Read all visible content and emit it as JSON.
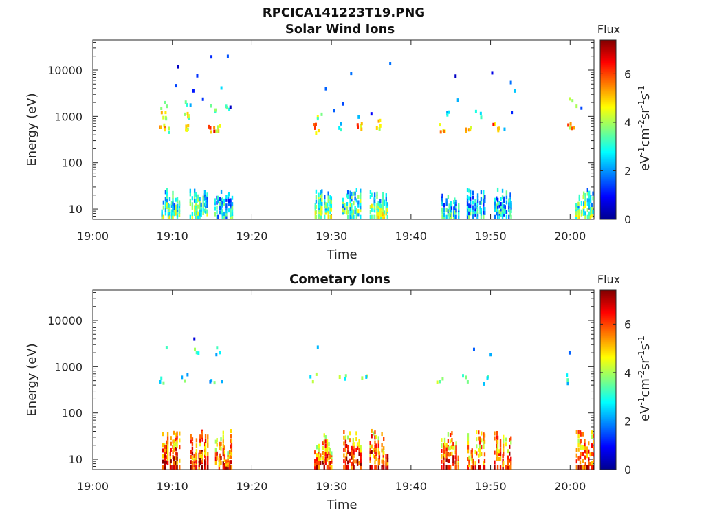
{
  "figure": {
    "title": "RPCICA141223T19.PNG"
  },
  "chart_data": [
    {
      "type": "heatmap",
      "title": "Solar Wind Ions",
      "xlabel": "Time",
      "ylabel": "Energy (eV)",
      "x_ticks": [
        "19:00",
        "19:10",
        "19:20",
        "19:30",
        "19:40",
        "19:50",
        "20:00"
      ],
      "y_ticks": [
        "10",
        "100",
        "1000",
        "10000"
      ],
      "y_scale": "log",
      "xlim_minutes": [
        0,
        63
      ],
      "ylim": [
        6,
        45000
      ],
      "colorbar": {
        "title": "Flux",
        "label": "eV-1cm-2sr-1s-1",
        "ticks": [
          "0",
          "2",
          "4",
          "6"
        ],
        "range": [
          0,
          7.4
        ]
      },
      "high_energy_bursts": [
        {
          "t": 8.9,
          "e": 1800,
          "v": 3.3
        },
        {
          "t": 8.9,
          "e": 1050,
          "v": 4.6
        },
        {
          "t": 8.7,
          "e": 550,
          "v": 5.1
        },
        {
          "t": 9.3,
          "e": 500,
          "v": 4.0
        },
        {
          "t": 10.4,
          "e": 3800,
          "v": 1.0
        },
        {
          "t": 10.8,
          "e": 13000,
          "v": 0.8
        },
        {
          "t": 11.9,
          "e": 1700,
          "v": 3.2
        },
        {
          "t": 12.0,
          "e": 1000,
          "v": 4.3
        },
        {
          "t": 11.6,
          "e": 550,
          "v": 5.0
        },
        {
          "t": 12.4,
          "e": 4500,
          "v": 1.1
        },
        {
          "t": 13.4,
          "e": 7800,
          "v": 0.9
        },
        {
          "t": 14.6,
          "e": 20000,
          "v": 0.8
        },
        {
          "t": 14.2,
          "e": 2900,
          "v": 2.2
        },
        {
          "t": 15.0,
          "e": 550,
          "v": 5.6
        },
        {
          "t": 15.3,
          "e": 1500,
          "v": 3.5
        },
        {
          "t": 15.8,
          "e": 520,
          "v": 4.4
        },
        {
          "t": 16.5,
          "e": 4200,
          "v": 1.5
        },
        {
          "t": 16.8,
          "e": 20000,
          "v": 0.8
        },
        {
          "t": 16.9,
          "e": 1300,
          "v": 3.0
        },
        {
          "t": 17.4,
          "e": 1300,
          "v": 1.2
        },
        {
          "t": 28.2,
          "e": 550,
          "v": 5.2
        },
        {
          "t": 28.5,
          "e": 1000,
          "v": 3.6
        },
        {
          "t": 29.1,
          "e": 4000,
          "v": 1.2
        },
        {
          "t": 30.2,
          "e": 1200,
          "v": 2.4
        },
        {
          "t": 31.0,
          "e": 550,
          "v": 3.0
        },
        {
          "t": 31.6,
          "e": 1800,
          "v": 1.6
        },
        {
          "t": 32.4,
          "e": 7800,
          "v": 0.8
        },
        {
          "t": 33.4,
          "e": 560,
          "v": 5.3
        },
        {
          "t": 33.6,
          "e": 1200,
          "v": 1.8
        },
        {
          "t": 34.6,
          "e": 1300,
          "v": 1.0
        },
        {
          "t": 35.9,
          "e": 650,
          "v": 4.4
        },
        {
          "t": 37.0,
          "e": 14000,
          "v": 0.9
        },
        {
          "t": 43.9,
          "e": 550,
          "v": 5.1
        },
        {
          "t": 44.8,
          "e": 1000,
          "v": 3.0
        },
        {
          "t": 45.5,
          "e": 9000,
          "v": 0.9
        },
        {
          "t": 46.3,
          "e": 2000,
          "v": 1.6
        },
        {
          "t": 47.3,
          "e": 550,
          "v": 5.3
        },
        {
          "t": 48.4,
          "e": 1100,
          "v": 2.6
        },
        {
          "t": 49.8,
          "e": 9500,
          "v": 0.8
        },
        {
          "t": 50.8,
          "e": 550,
          "v": 5.4
        },
        {
          "t": 51.5,
          "e": 550,
          "v": 1.2
        },
        {
          "t": 52.3,
          "e": 6000,
          "v": 1.0
        },
        {
          "t": 52.6,
          "e": 3800,
          "v": 2.0
        },
        {
          "t": 53.0,
          "e": 1400,
          "v": 1.5
        },
        {
          "t": 60.1,
          "e": 550,
          "v": 5.0
        },
        {
          "t": 60.4,
          "e": 1900,
          "v": 3.4
        },
        {
          "t": 61.5,
          "e": 1800,
          "v": 1.1
        }
      ],
      "low_energy_bursts": [
        {
          "t": 9.5,
          "v": 3.6
        },
        {
          "t": 13.1,
          "v": 3.4
        },
        {
          "t": 16.2,
          "v": 2.8
        },
        {
          "t": 28.7,
          "v": 3.8
        },
        {
          "t": 32.3,
          "v": 3.5
        },
        {
          "t": 35.7,
          "v": 3.9
        },
        {
          "t": 44.6,
          "v": 2.8
        },
        {
          "t": 47.9,
          "v": 2.6
        },
        {
          "t": 51.3,
          "v": 2.8
        },
        {
          "t": 61.6,
          "v": 3.7
        }
      ]
    },
    {
      "type": "heatmap",
      "title": "Cometary Ions",
      "xlabel": "Time",
      "ylabel": "Energy (eV)",
      "x_ticks": [
        "19:00",
        "19:10",
        "19:20",
        "19:30",
        "19:40",
        "19:50",
        "20:00"
      ],
      "y_ticks": [
        "10",
        "100",
        "1000",
        "10000"
      ],
      "y_scale": "log",
      "xlim_minutes": [
        0,
        63
      ],
      "ylim": [
        6,
        45000
      ],
      "colorbar": {
        "title": "Flux",
        "label": "eV-1cm-2sr-1s-1",
        "ticks": [
          "0",
          "2",
          "4",
          "6"
        ],
        "range": [
          0,
          7.4
        ]
      },
      "high_energy_bursts": [
        {
          "t": 9.2,
          "e": 2200,
          "v": 2.2
        },
        {
          "t": 8.5,
          "e": 550,
          "v": 3.3
        },
        {
          "t": 11.5,
          "e": 550,
          "v": 3.0
        },
        {
          "t": 12.5,
          "e": 4500,
          "v": 1.5
        },
        {
          "t": 12.9,
          "e": 2200,
          "v": 3.1
        },
        {
          "t": 14.9,
          "e": 500,
          "v": 2.9
        },
        {
          "t": 15.6,
          "e": 2100,
          "v": 2.6
        },
        {
          "t": 16.6,
          "e": 600,
          "v": 2.0
        },
        {
          "t": 27.8,
          "e": 550,
          "v": 3.1
        },
        {
          "t": 28.6,
          "e": 2200,
          "v": 1.4
        },
        {
          "t": 31.4,
          "e": 500,
          "v": 3.2
        },
        {
          "t": 34.2,
          "e": 550,
          "v": 3.2
        },
        {
          "t": 43.6,
          "e": 550,
          "v": 3.3
        },
        {
          "t": 46.9,
          "e": 520,
          "v": 3.0
        },
        {
          "t": 47.7,
          "e": 2200,
          "v": 1.5
        },
        {
          "t": 49.3,
          "e": 530,
          "v": 3.0
        },
        {
          "t": 50.3,
          "e": 2300,
          "v": 2.2
        },
        {
          "t": 59.7,
          "e": 550,
          "v": 3.0
        },
        {
          "t": 60.3,
          "e": 2200,
          "v": 1.5
        }
      ],
      "low_energy_bursts": [
        {
          "t": 9.5,
          "v": 6.4
        },
        {
          "t": 13.1,
          "v": 6.6
        },
        {
          "t": 16.2,
          "v": 6.2
        },
        {
          "t": 28.7,
          "v": 6.3
        },
        {
          "t": 32.3,
          "v": 6.6
        },
        {
          "t": 35.7,
          "v": 6.5
        },
        {
          "t": 44.6,
          "v": 6.5
        },
        {
          "t": 47.9,
          "v": 6.1
        },
        {
          "t": 51.3,
          "v": 6.4
        },
        {
          "t": 61.6,
          "v": 6.5
        }
      ]
    }
  ]
}
